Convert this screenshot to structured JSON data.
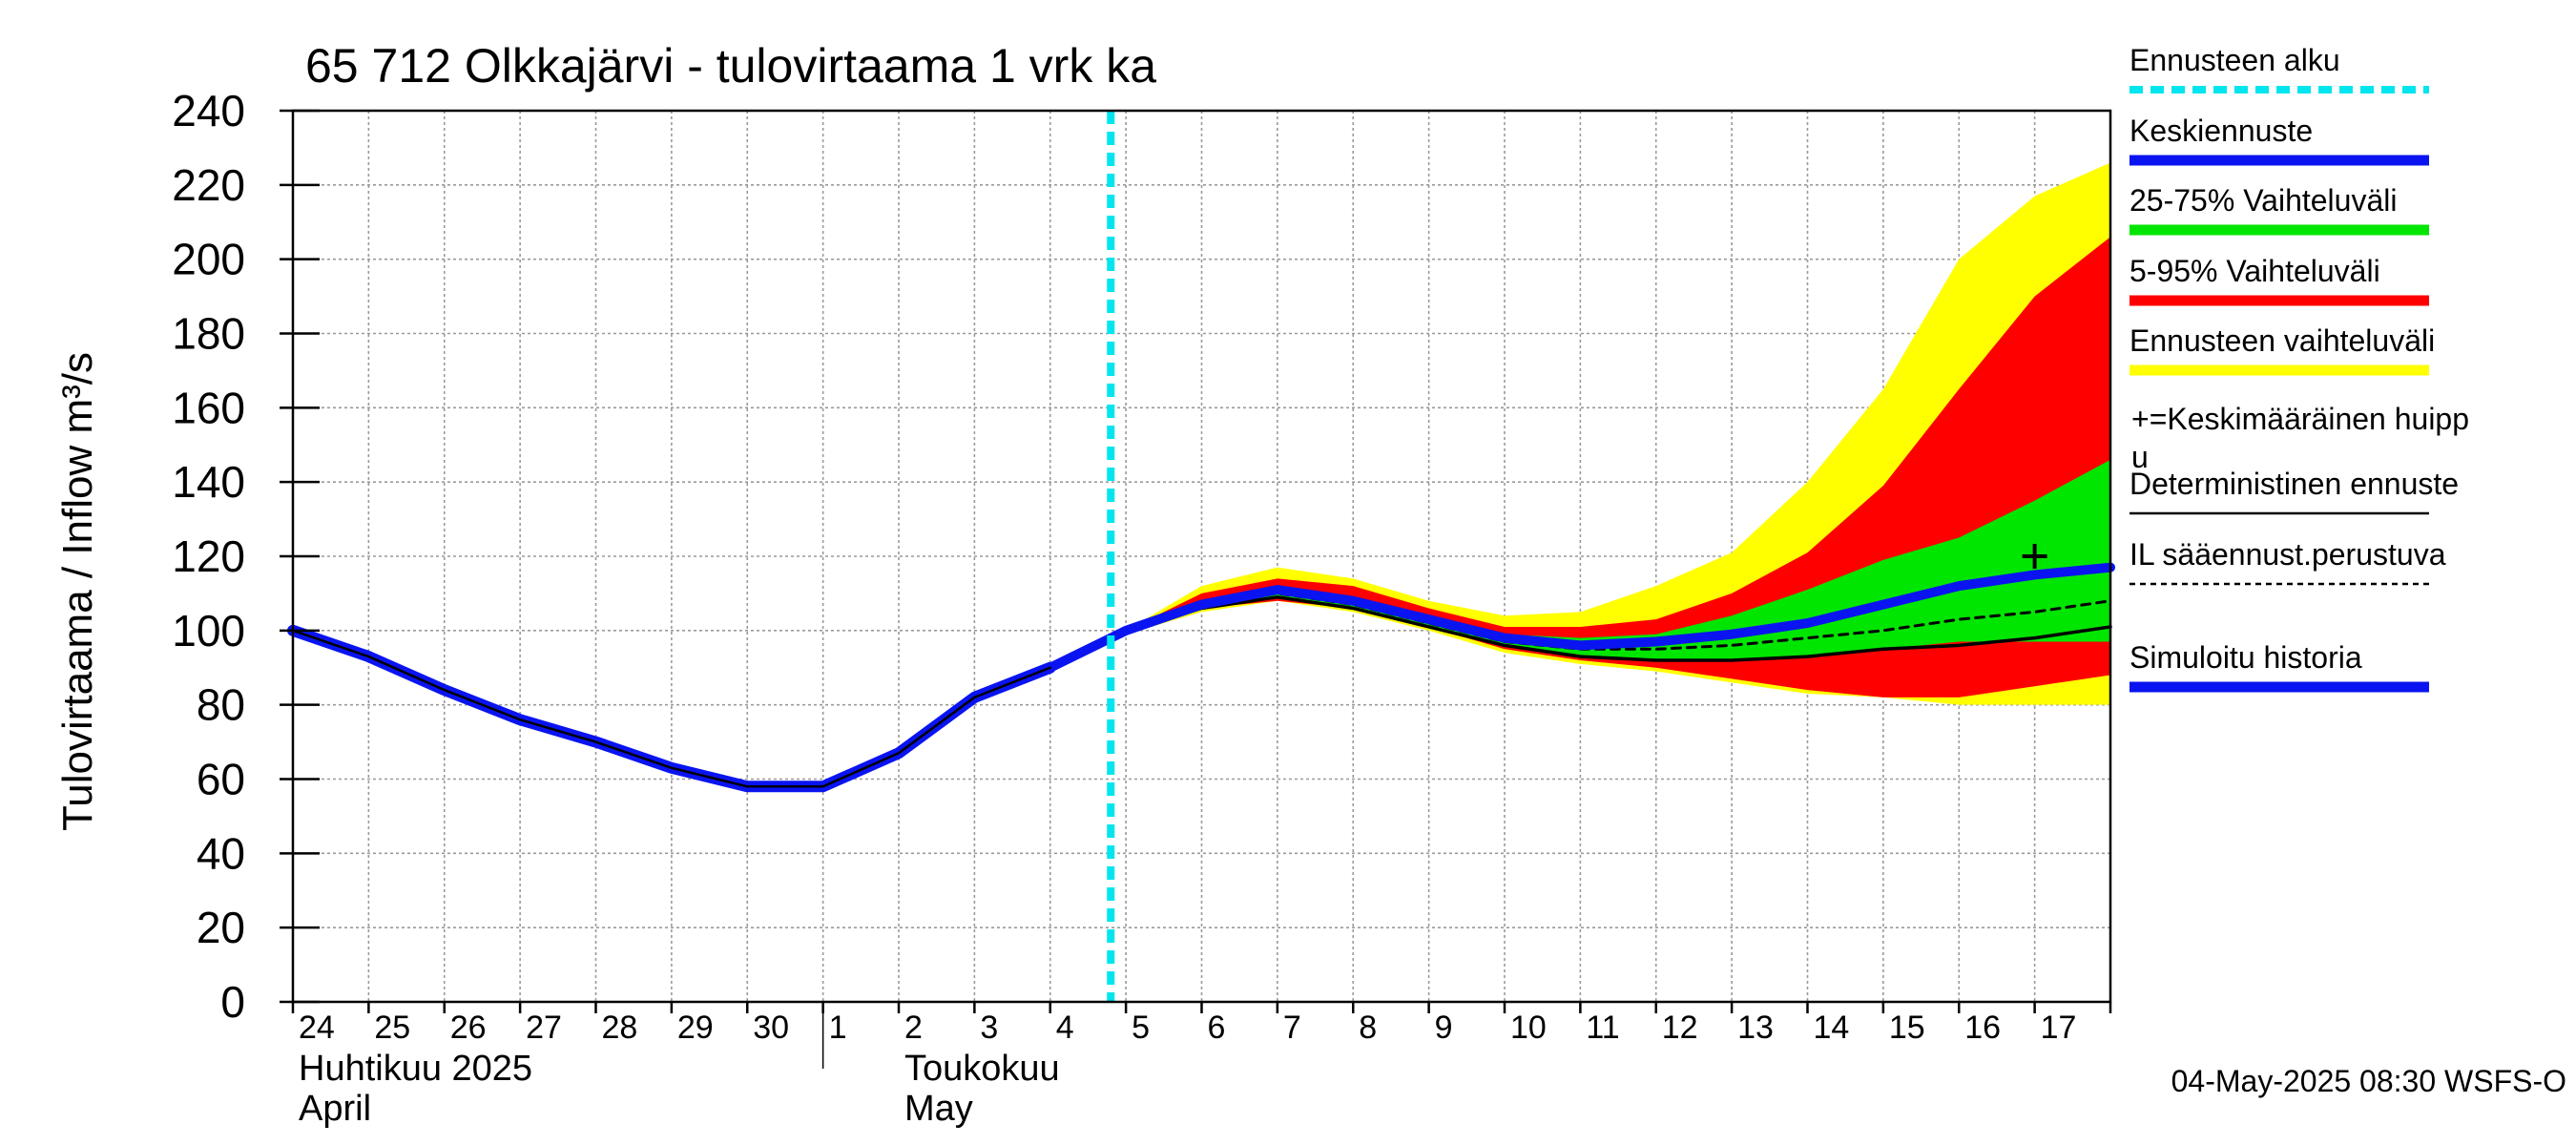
{
  "chart_data": {
    "type": "area",
    "title": "65 712 Olkkajärvi - tulovirtaama 1 vrk ka",
    "ylabel": "Tulovirtaama / Inflow    m³/s",
    "ylim": [
      0,
      240
    ],
    "yticks": [
      "0",
      "20",
      "40",
      "60",
      "80",
      "100",
      "120",
      "140",
      "160",
      "180",
      "200",
      "220",
      "240"
    ],
    "x_day_labels": [
      "24",
      "25",
      "26",
      "27",
      "28",
      "29",
      "30",
      "1",
      "2",
      "3",
      "4",
      "5",
      "6",
      "7",
      "8",
      "9",
      "10",
      "11",
      "12",
      "13",
      "14",
      "15",
      "16",
      "17"
    ],
    "month_labels": [
      {
        "fi": "Huhtikuu  2025",
        "en": "April"
      },
      {
        "fi": "Toukokuu",
        "en": "May"
      }
    ],
    "forecast_start_day": 10.8,
    "grid": true,
    "series": [
      {
        "name": "Simuloitu historia",
        "x": [
          0,
          1,
          2,
          3,
          4,
          5,
          6,
          7,
          8,
          9,
          10
        ],
        "values": [
          100,
          93,
          84,
          76,
          70,
          63,
          58,
          58,
          67,
          82,
          90
        ]
      },
      {
        "name": "Ennusteen vaihteluväli",
        "x": [
          10,
          11,
          12,
          13,
          14,
          15,
          16,
          17,
          18,
          19,
          20,
          21,
          22,
          23,
          24
        ],
        "upper": [
          90,
          100,
          112,
          117,
          114,
          108,
          104,
          105,
          112,
          121,
          140,
          165,
          200,
          217,
          226
        ],
        "lower": [
          90,
          99,
          105,
          108,
          105,
          100,
          94,
          91,
          89,
          86,
          83,
          82,
          80,
          80,
          80
        ]
      },
      {
        "name": "5-95% Vaihteluväli",
        "x": [
          10,
          11,
          12,
          13,
          14,
          15,
          16,
          17,
          18,
          19,
          20,
          21,
          22,
          23,
          24
        ],
        "upper": [
          90,
          100,
          110,
          114,
          112,
          106,
          101,
          101,
          103,
          110,
          121,
          139,
          165,
          190,
          206
        ],
        "lower": [
          90,
          99,
          106,
          108,
          106,
          101,
          95,
          92,
          90,
          87,
          84,
          82,
          82,
          85,
          88
        ]
      },
      {
        "name": "25-75% Vaihteluväli",
        "x": [
          10,
          11,
          12,
          13,
          14,
          15,
          16,
          17,
          18,
          19,
          20,
          21,
          22,
          23,
          24
        ],
        "upper": [
          90,
          100,
          108,
          112,
          109,
          103,
          99,
          98,
          99,
          104,
          111,
          119,
          125,
          135,
          146
        ],
        "lower": [
          90,
          99,
          106,
          109,
          106,
          101,
          96,
          93,
          92,
          92,
          93,
          95,
          97,
          97,
          97
        ]
      },
      {
        "name": "Keskiennuste",
        "x": [
          10,
          11,
          12,
          13,
          14,
          15,
          16,
          17,
          18,
          19,
          20,
          21,
          22,
          23,
          24
        ],
        "values": [
          90,
          100,
          107,
          111,
          108,
          103,
          98,
          96,
          97,
          99,
          102,
          107,
          112,
          115,
          117
        ]
      },
      {
        "name": "IL sääennust.perustuva",
        "x": [
          10,
          11,
          12,
          13,
          14,
          15,
          16,
          17,
          18,
          19,
          20,
          21,
          22,
          23,
          24
        ],
        "values": [
          90,
          100,
          107,
          110,
          107,
          102,
          97,
          95,
          95,
          96,
          98,
          100,
          103,
          105,
          108
        ]
      },
      {
        "name": "Deterministinen ennuste",
        "x": [
          10,
          11,
          12,
          13,
          14,
          15,
          16,
          17,
          18,
          19,
          20,
          21,
          22,
          23,
          24
        ],
        "values": [
          90,
          100,
          106,
          109,
          106,
          101,
          96,
          93,
          92,
          92,
          93,
          95,
          96,
          98,
          101
        ]
      }
    ],
    "peak_marker": {
      "x": 23,
      "y": 120,
      "label": "+=Keskimääräinen huippu"
    }
  },
  "legend": {
    "items": [
      {
        "label": "Ennusteen alku",
        "color": "#00e5ee",
        "style": "dashed"
      },
      {
        "label": "Keskiennuste",
        "color": "#0a14f0",
        "style": "solid"
      },
      {
        "label": "25-75% Vaihteluväli",
        "color": "#00e600",
        "style": "solid"
      },
      {
        "label": "5-95% Vaihteluväli",
        "color": "#ff0000",
        "style": "solid"
      },
      {
        "label": "Ennusteen vaihteluväli",
        "color": "#ffff00",
        "style": "solid"
      },
      {
        "label": "+=Keskimääräinen huipp",
        "label2": "u",
        "color": "#000000",
        "style": "none"
      },
      {
        "label": "Deterministinen ennuste",
        "color": "#000000",
        "style": "thin"
      },
      {
        "label": "IL sääennust.perustuva",
        "color": "#000000",
        "style": "dotted"
      },
      {
        "label": "Simuloitu historia",
        "color": "#0a14f0",
        "style": "solid"
      }
    ]
  },
  "footer": "04-May-2025 08:30 WSFS-O"
}
